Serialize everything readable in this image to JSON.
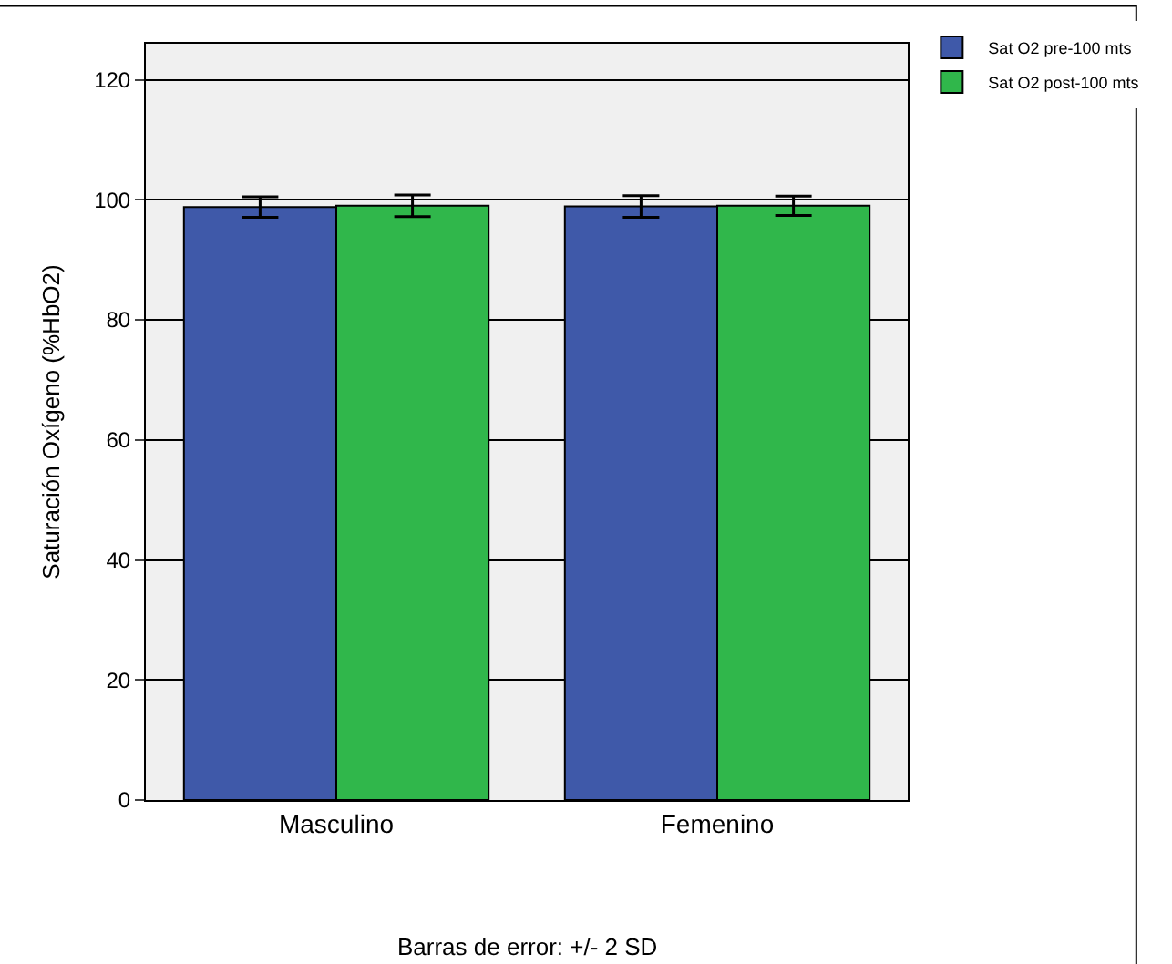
{
  "chart_data": {
    "type": "bar",
    "ylabel": "Saturación Oxígeno (%HbO2)",
    "categories": [
      "Masculino",
      "Femenino"
    ],
    "series": [
      {
        "name": "Sat O2 pre-100 mts",
        "color": "#3f59a9",
        "values": [
          98.8,
          98.9
        ],
        "errors": [
          1.7,
          1.8
        ]
      },
      {
        "name": "Sat O2 post-100 mts",
        "color": "#30b74b",
        "values": [
          99.0,
          99.0
        ],
        "errors": [
          1.8,
          1.6
        ]
      }
    ],
    "ylim": [
      0,
      126
    ],
    "yticks": [
      0,
      20,
      40,
      60,
      80,
      100,
      120
    ],
    "grid": "y",
    "legend": "top right",
    "annotations": [
      "Barras de error: +/- 2 SD"
    ]
  }
}
